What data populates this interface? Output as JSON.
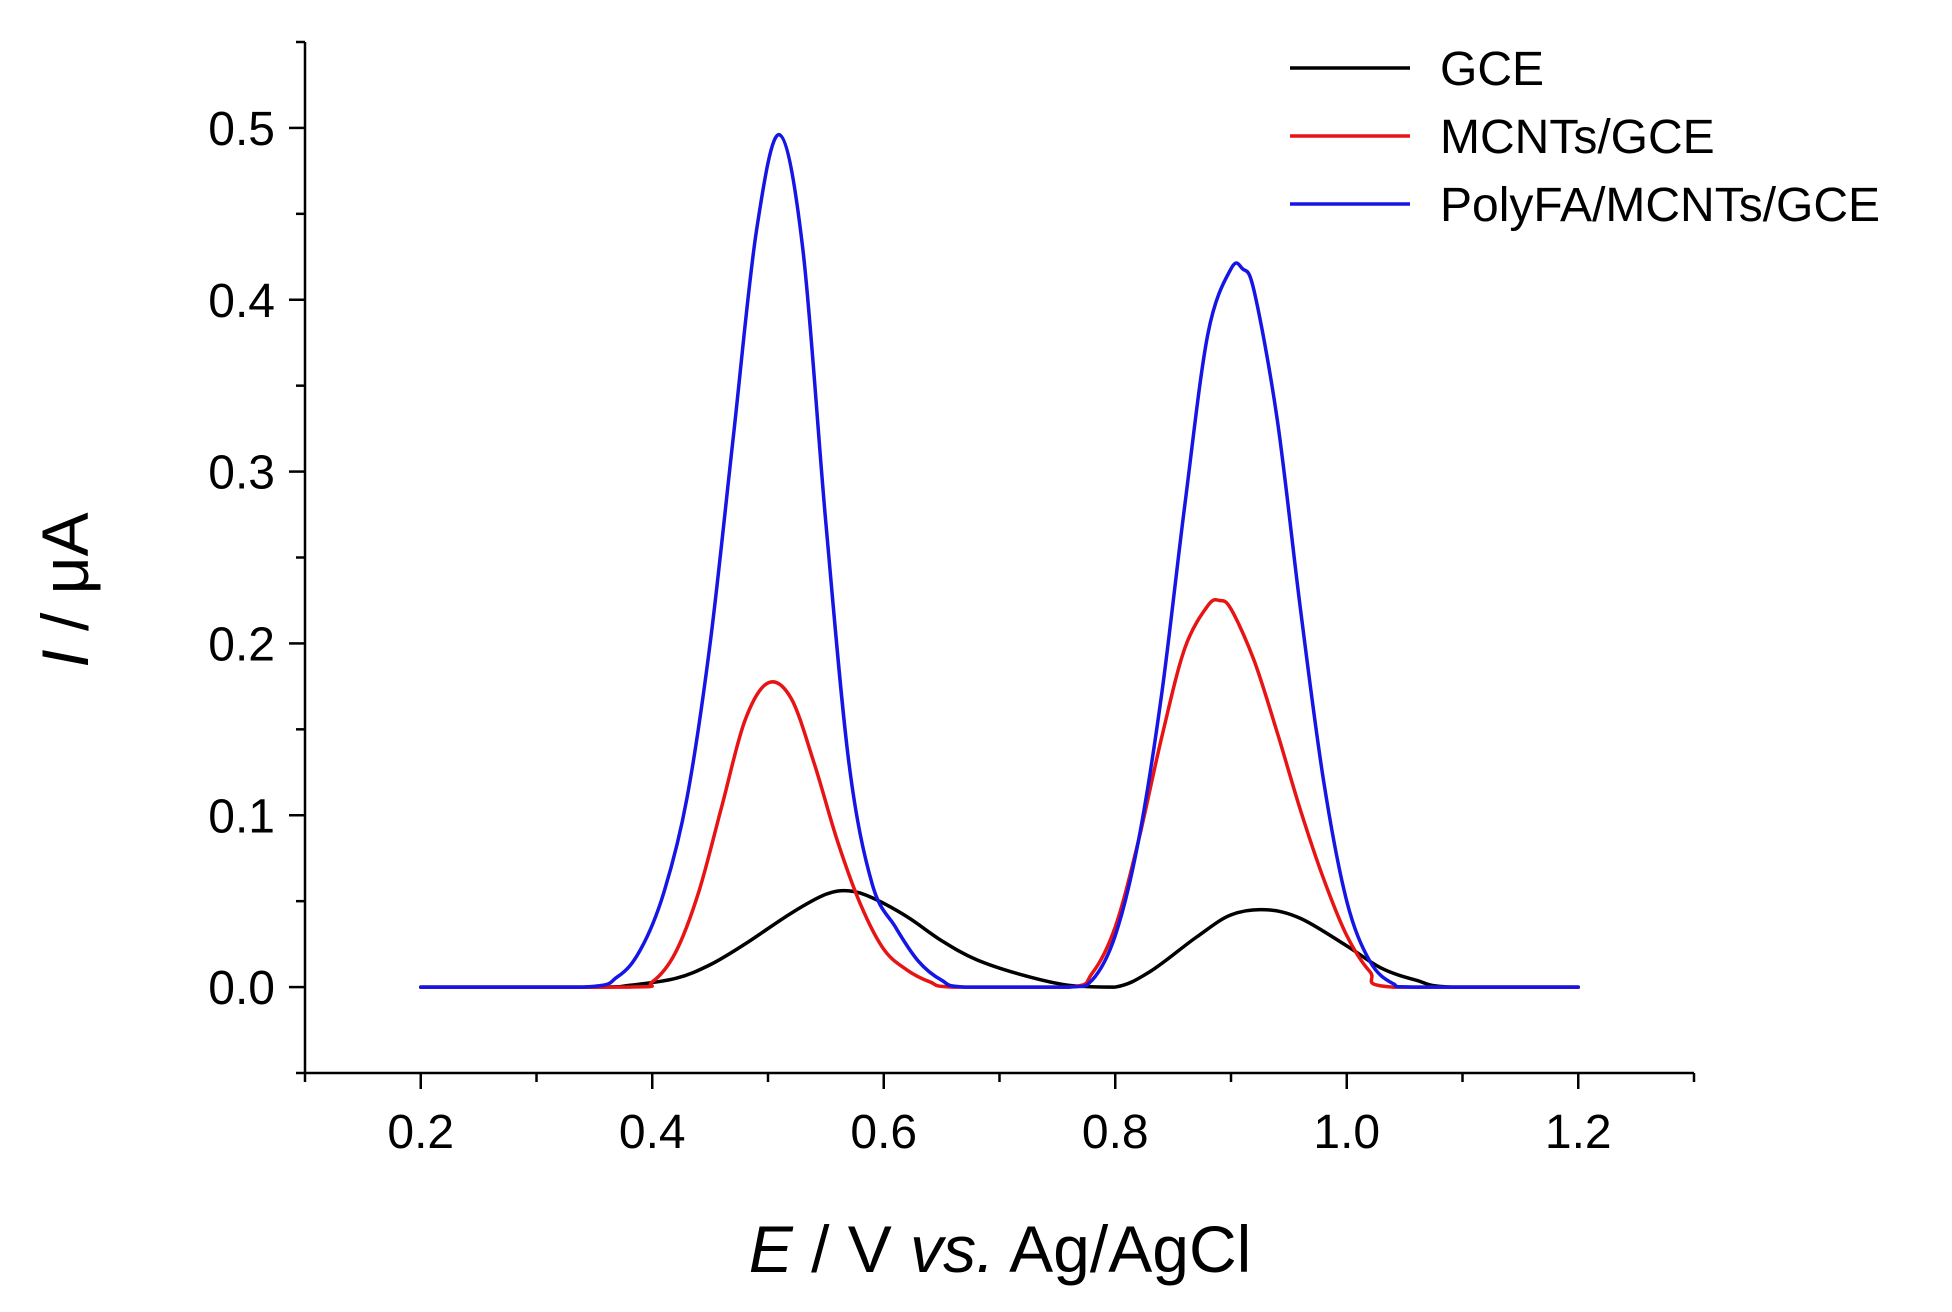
{
  "chart_data": {
    "type": "line",
    "x_label": {
      "symbol": "E",
      "unit": " / V ",
      "ref_italic": "vs.",
      "ref": " Ag/AgCl"
    },
    "y_label": {
      "symbol": "I",
      "unit": " / μA"
    },
    "xlim": [
      0.1,
      1.3
    ],
    "ylim": [
      -0.05,
      0.55
    ],
    "x_ticks": [
      "0.2",
      "0.4",
      "0.6",
      "0.8",
      "1.0",
      "1.2"
    ],
    "y_ticks": [
      "0.0",
      "0.1",
      "0.2",
      "0.3",
      "0.4",
      "0.5"
    ],
    "legend_position": "top-right",
    "series": [
      {
        "name": "GCE",
        "color": "#000000",
        "x": [
          0.2,
          0.35,
          0.38,
          0.42,
          0.45,
          0.48,
          0.52,
          0.55,
          0.57,
          0.59,
          0.62,
          0.65,
          0.68,
          0.72,
          0.76,
          0.8,
          0.83,
          0.87,
          0.9,
          0.93,
          0.96,
          1.0,
          1.03,
          1.06,
          1.09,
          1.2
        ],
        "values": [
          0.0,
          0.0,
          0.001,
          0.005,
          0.013,
          0.025,
          0.043,
          0.054,
          0.056,
          0.052,
          0.041,
          0.027,
          0.016,
          0.007,
          0.001,
          0.0,
          0.009,
          0.029,
          0.042,
          0.045,
          0.04,
          0.024,
          0.011,
          0.004,
          0.0,
          0.0
        ]
      },
      {
        "name": "MCNTs/GCE",
        "color": "#e81313",
        "x": [
          0.2,
          0.38,
          0.4,
          0.42,
          0.44,
          0.46,
          0.48,
          0.5,
          0.52,
          0.54,
          0.56,
          0.58,
          0.6,
          0.62,
          0.64,
          0.66,
          0.76,
          0.78,
          0.8,
          0.82,
          0.84,
          0.86,
          0.88,
          0.89,
          0.9,
          0.92,
          0.94,
          0.96,
          0.98,
          1.0,
          1.02,
          1.04,
          1.2
        ],
        "values": [
          0.0,
          0.0,
          0.003,
          0.02,
          0.055,
          0.105,
          0.155,
          0.177,
          0.168,
          0.13,
          0.085,
          0.048,
          0.022,
          0.01,
          0.003,
          0.0,
          0.0,
          0.008,
          0.035,
          0.085,
          0.145,
          0.197,
          0.222,
          0.225,
          0.22,
          0.19,
          0.148,
          0.103,
          0.063,
          0.03,
          0.009,
          0.0,
          0.0
        ]
      },
      {
        "name": "PolyFA/MCNTs/GCE",
        "color": "#1515e6",
        "x": [
          0.2,
          0.34,
          0.37,
          0.39,
          0.41,
          0.43,
          0.45,
          0.47,
          0.49,
          0.51,
          0.53,
          0.55,
          0.57,
          0.59,
          0.61,
          0.63,
          0.65,
          0.67,
          0.76,
          0.78,
          0.8,
          0.82,
          0.84,
          0.86,
          0.88,
          0.9,
          0.91,
          0.92,
          0.94,
          0.96,
          0.98,
          1.0,
          1.02,
          1.04,
          1.06,
          1.2
        ],
        "values": [
          0.0,
          0.0,
          0.006,
          0.022,
          0.055,
          0.11,
          0.2,
          0.32,
          0.44,
          0.496,
          0.43,
          0.27,
          0.13,
          0.06,
          0.035,
          0.015,
          0.004,
          0.0,
          0.0,
          0.004,
          0.03,
          0.085,
          0.17,
          0.28,
          0.38,
          0.418,
          0.418,
          0.405,
          0.33,
          0.22,
          0.12,
          0.05,
          0.015,
          0.002,
          0.0,
          0.0
        ]
      }
    ]
  }
}
